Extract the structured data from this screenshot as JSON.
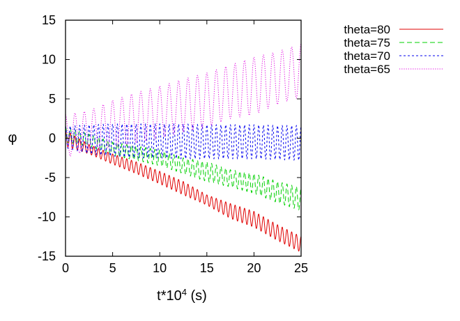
{
  "chart_data": {
    "type": "line",
    "xlabel": "t*10",
    "xlabel_exp": "4",
    "xlabel_unit": " (s)",
    "ylabel": "φ",
    "xlim": [
      0,
      25
    ],
    "ylim": [
      -15,
      15
    ],
    "xticks": [
      "0",
      "5",
      "10",
      "15",
      "20",
      "25"
    ],
    "yticks": [
      "15",
      "10",
      "5",
      "0",
      "-5",
      "-10",
      "-15"
    ],
    "grid": false,
    "legend_position": "outside-top-right",
    "series": [
      {
        "name": "theta=80",
        "color": "#e00000",
        "dash": "solid",
        "oscillation_period": 0.5,
        "x": [
          0,
          2.5,
          5,
          7.5,
          10,
          12.5,
          15,
          17.5,
          20,
          22.5,
          25
        ],
        "upper": [
          1.0,
          -0.8,
          -2.0,
          -3.0,
          -4.2,
          -5.5,
          -7.2,
          -8.3,
          -9.3,
          -11.0,
          -12.5
        ],
        "lower": [
          -1.0,
          -2.0,
          -3.3,
          -4.5,
          -5.8,
          -7.2,
          -8.5,
          -10.2,
          -11.3,
          -13.0,
          -14.5
        ]
      },
      {
        "name": "theta=75",
        "color": "#00d000",
        "dash": "dashed",
        "oscillation_period": 0.5,
        "x": [
          0,
          2.5,
          5,
          7.5,
          10,
          12.5,
          15,
          17.5,
          20,
          22.5,
          25
        ],
        "upper": [
          1.5,
          0.5,
          -0.5,
          -1.0,
          -1.5,
          -2.5,
          -3.0,
          -4.0,
          -4.5,
          -5.5,
          -6.3
        ],
        "lower": [
          -0.5,
          -1.0,
          -2.2,
          -2.8,
          -3.5,
          -4.5,
          -5.5,
          -6.2,
          -7.0,
          -8.2,
          -9.2
        ]
      },
      {
        "name": "theta=70",
        "color": "#0000ee",
        "dash": "short-dash",
        "oscillation_period": 0.5,
        "x": [
          0,
          2.5,
          5,
          7.5,
          10,
          12.5,
          15,
          17.5,
          20,
          22.5,
          25
        ],
        "upper": [
          1.5,
          1.7,
          1.8,
          1.8,
          1.8,
          1.8,
          1.7,
          1.7,
          1.7,
          1.6,
          1.6
        ],
        "lower": [
          -1.2,
          -2.0,
          -2.3,
          -2.5,
          -2.5,
          -2.6,
          -2.6,
          -2.6,
          -2.6,
          -2.7,
          -2.8
        ]
      },
      {
        "name": "theta=65",
        "color": "#e000e0",
        "dash": "dotted",
        "oscillation_period": 1.0,
        "x": [
          0,
          2.5,
          5,
          7.5,
          10,
          12.5,
          15,
          17.5,
          20,
          22.5,
          25
        ],
        "upper": [
          3.0,
          3.5,
          4.8,
          5.8,
          6.6,
          7.5,
          8.3,
          9.3,
          10.3,
          11.0,
          12.0
        ],
        "lower": [
          -2.5,
          -1.5,
          -1.2,
          -0.6,
          0.0,
          0.8,
          1.4,
          2.5,
          3.0,
          4.3,
          5.3
        ]
      }
    ]
  }
}
